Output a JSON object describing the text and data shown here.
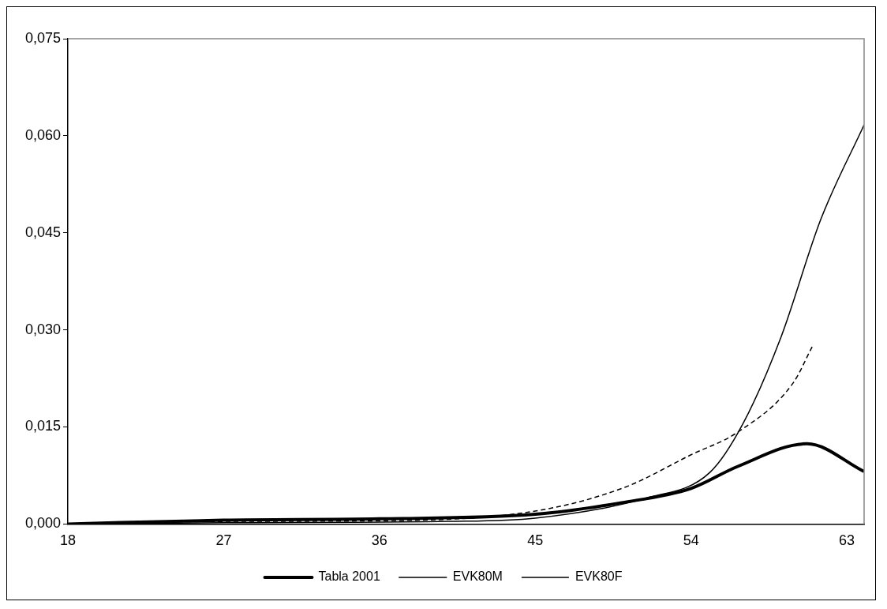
{
  "chart_data": {
    "type": "line",
    "xlim": [
      18,
      64
    ],
    "xticks": [
      18,
      27,
      36,
      45,
      54,
      63
    ],
    "ylim": [
      0,
      0.075
    ],
    "yticks": [
      {
        "value": 0,
        "label": "0,000"
      },
      {
        "value": 0.015,
        "label": "0,015"
      },
      {
        "value": 0.03,
        "label": "0,030"
      },
      {
        "value": 0.045,
        "label": "0,045"
      },
      {
        "value": 0.06,
        "label": "0,060"
      },
      {
        "value": 0.075,
        "label": "0,075"
      }
    ],
    "grid": false,
    "legend": "bottom",
    "marker": "none",
    "series": [
      {
        "name": "Tabla 2001",
        "color": "#000000",
        "line_style": "solid",
        "x": [
          18,
          27,
          36,
          45,
          50,
          54,
          56.7,
          60.7,
          64
        ],
        "values": [
          0,
          0.0006,
          0.0008,
          0.0015,
          0.0033,
          0.0055,
          0.0089,
          0.0124,
          0.0081
        ]
      },
      {
        "name": "EVK80M",
        "color": "#000000",
        "line_style": "solid",
        "x": [
          18,
          27,
          40,
          45,
          51.4,
          55.1,
          57,
          59.2,
          61.5,
          64
        ],
        "values": [
          0,
          0.0002,
          0.0004,
          0.0009,
          0.004,
          0.008,
          0.0155,
          0.0289,
          0.0471,
          0.0617
        ]
      },
      {
        "name": "EVK80F",
        "color": "#000000",
        "line_style": "dashed",
        "x": [
          18,
          27,
          36,
          45,
          50.2,
          54,
          56.7,
          59.9,
          61
        ],
        "values": [
          0,
          0.0004,
          0.0005,
          0.002,
          0.0057,
          0.0107,
          0.0142,
          0.0218,
          0.0274
        ]
      }
    ]
  }
}
